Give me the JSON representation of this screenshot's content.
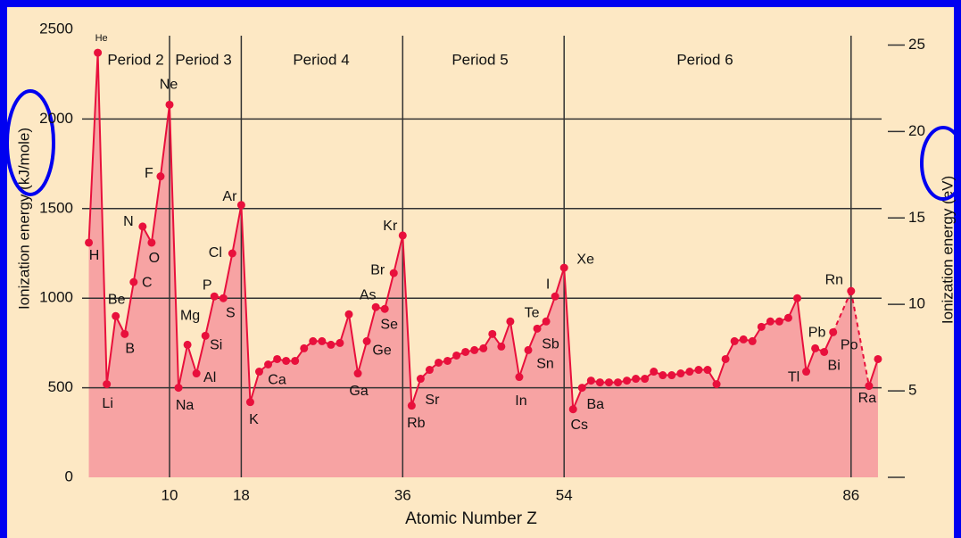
{
  "chart_data": {
    "type": "line",
    "x_label": "Atomic Number Z",
    "y_label": "Ionization energy (kJ/mole)",
    "y2_label": "Ionization energy (eV)",
    "periods": [
      "Period 2",
      "Period 3",
      "Period 4",
      "Period 5",
      "Period 6"
    ],
    "x": [
      1,
      2,
      3,
      4,
      5,
      6,
      7,
      8,
      9,
      10,
      11,
      12,
      13,
      14,
      15,
      16,
      17,
      18,
      19,
      20,
      21,
      22,
      23,
      24,
      25,
      26,
      27,
      28,
      29,
      30,
      31,
      32,
      33,
      34,
      35,
      36,
      37,
      38,
      39,
      40,
      41,
      42,
      43,
      44,
      45,
      46,
      47,
      48,
      49,
      50,
      51,
      52,
      53,
      54,
      55,
      56,
      57,
      58,
      59,
      60,
      61,
      62,
      63,
      64,
      65,
      66,
      67,
      68,
      69,
      70,
      71,
      72,
      73,
      74,
      75,
      76,
      77,
      78,
      79,
      80,
      81,
      82,
      83,
      84,
      85,
      86,
      87,
      88,
      89
    ],
    "series": [
      {
        "color": "#e8103c",
        "values": [
          1310,
          2370,
          520,
          900,
          800,
          1090,
          1400,
          1310,
          1680,
          2080,
          500,
          740,
          580,
          790,
          1010,
          1000,
          1250,
          1520,
          420,
          590,
          630,
          660,
          650,
          650,
          720,
          760,
          760,
          740,
          750,
          910,
          580,
          760,
          950,
          940,
          1140,
          1350,
          400,
          550,
          600,
          640,
          650,
          680,
          700,
          710,
          720,
          800,
          730,
          870,
          560,
          710,
          830,
          870,
          1010,
          1170,
          380,
          500,
          540,
          530,
          530,
          530,
          540,
          550,
          550,
          590,
          570,
          570,
          580,
          590,
          600,
          600,
          520,
          660,
          760,
          770,
          760,
          840,
          870,
          870,
          890,
          1000,
          590,
          720,
          700,
          810,
          null,
          1040,
          null,
          510,
          660
        ]
      }
    ],
    "labels": [
      "H",
      "He",
      "Li",
      "Be",
      "B",
      "C",
      "N",
      "O",
      "F",
      "Ne",
      "Na",
      "Mg",
      "Al",
      "Si",
      "P",
      "S",
      "Cl",
      "Ar",
      "K",
      "Ca",
      null,
      null,
      null,
      null,
      null,
      null,
      null,
      null,
      null,
      null,
      "Ga",
      "Ge",
      "As",
      "Se",
      "Br",
      "Kr",
      "Rb",
      "Sr",
      null,
      null,
      null,
      null,
      null,
      null,
      null,
      null,
      null,
      null,
      "In",
      "Sn",
      "Sb",
      "Te",
      "I",
      "Xe",
      "Cs",
      "Ba",
      null,
      null,
      null,
      null,
      null,
      null,
      null,
      null,
      null,
      null,
      null,
      null,
      null,
      null,
      null,
      null,
      null,
      null,
      null,
      null,
      null,
      null,
      null,
      null,
      "Tl",
      "Pb",
      "Bi",
      "Po",
      null,
      "Rn",
      null,
      "Ra",
      null
    ],
    "xlim": [
      0,
      90
    ],
    "xticks": [
      10,
      18,
      36,
      54,
      86
    ],
    "ylim": [
      0,
      2500
    ],
    "yticks": [
      0,
      500,
      1000,
      1500,
      2000,
      2500
    ],
    "y2lim": [
      0,
      25.9
    ],
    "y2ticks": [
      5,
      10,
      15,
      20,
      25
    ],
    "grid": true
  }
}
